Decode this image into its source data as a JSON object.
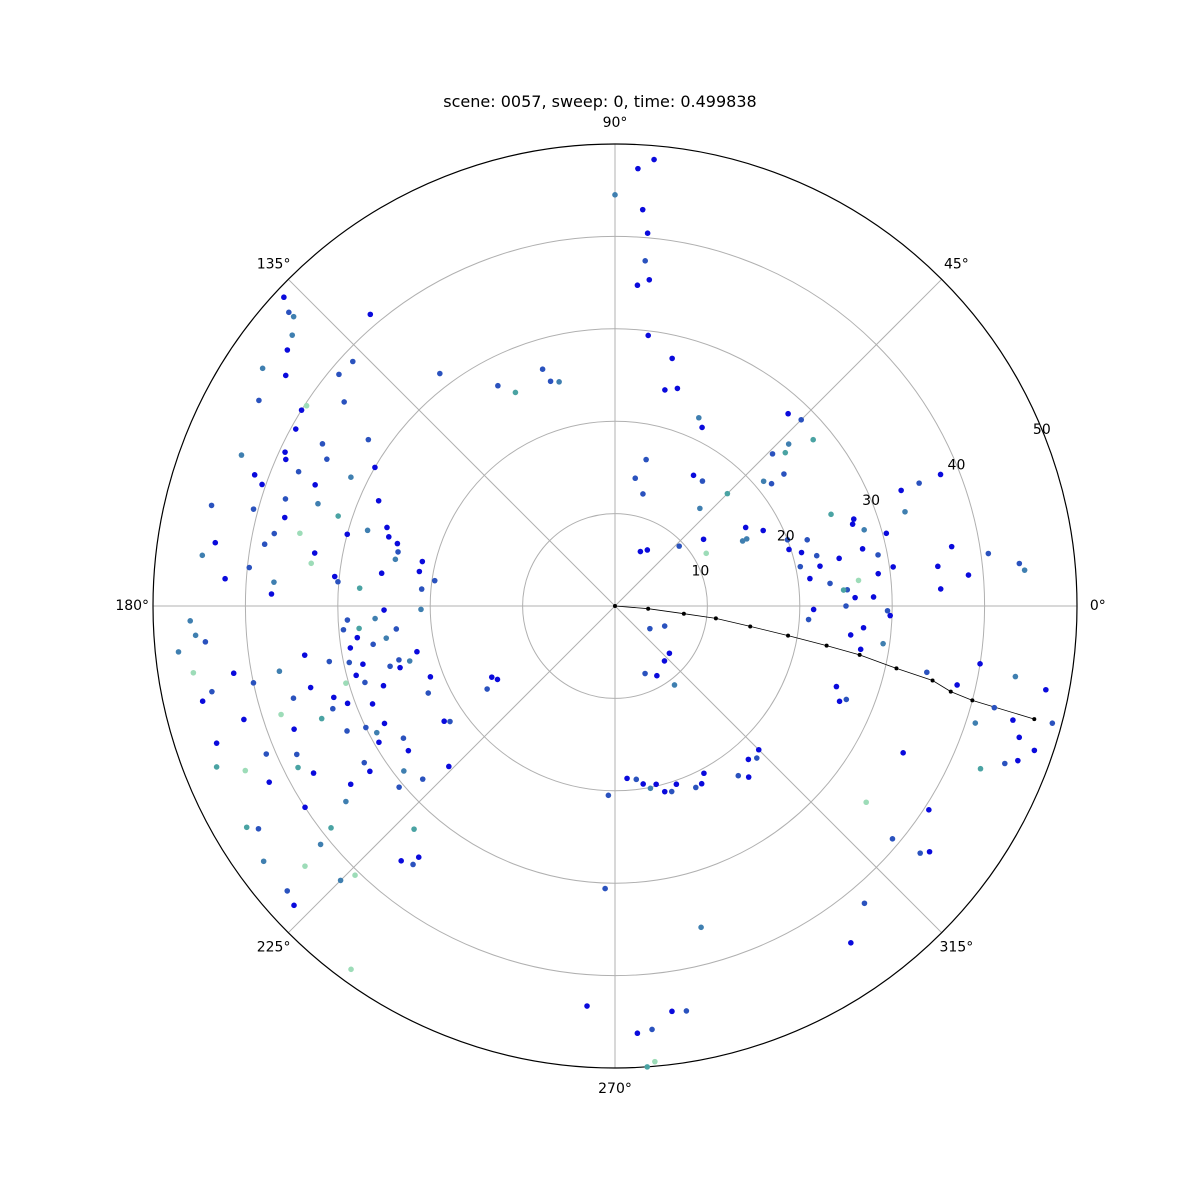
{
  "chart_data": {
    "type": "scatter",
    "coordinate_system": "polar",
    "title": "scene: 0057, sweep: 0, time: 0.499838",
    "angle_unit": "degrees",
    "theta_tick_labels": [
      "0°",
      "45°",
      "90°",
      "135°",
      "180°",
      "225°",
      "270°",
      "315°"
    ],
    "theta_ticks": [
      0,
      45,
      90,
      135,
      180,
      225,
      270,
      315
    ],
    "r_ticks": [
      10,
      20,
      30,
      40,
      50
    ],
    "r_tick_labels": [
      "10",
      "20",
      "30",
      "40",
      "50"
    ],
    "r_label_angle": 22.5,
    "rlim": [
      0,
      50
    ],
    "grid": true,
    "legend": "none",
    "colors": {
      "dark_blue": "#0a0adc",
      "blue": "#2a52be",
      "steel": "#3f7fb0",
      "teal": "#4aa3a3",
      "mint": "#9ddcb8",
      "trajectory": "#000000",
      "grid": "#b0b0b0",
      "frame": "#000000"
    },
    "points": [
      [
        7,
        28.7,
        0
      ],
      [
        8,
        30.4,
        0
      ],
      [
        7,
        35.2,
        0
      ],
      [
        5,
        38.4,
        0
      ],
      [
        3,
        35.3,
        0
      ],
      [
        2,
        28.0,
        0
      ],
      [
        6,
        23.4,
        1
      ],
      [
        4,
        25.2,
        1
      ],
      [
        0,
        25.0,
        1
      ],
      [
        -1,
        21.5,
        0
      ],
      [
        -4,
        21.0,
        1
      ],
      [
        10,
        37.0,
        0
      ],
      [
        8,
        40.8,
        1
      ],
      [
        12,
        24.8,
        0
      ],
      [
        14,
        22.5,
        1
      ],
      [
        13,
        27.5,
        0
      ],
      [
        15,
        30.4,
        0
      ],
      [
        20,
        27.5,
        0
      ],
      [
        18,
        33.0,
        2
      ],
      [
        22,
        35.5,
        1
      ],
      [
        22,
        38.0,
        0
      ],
      [
        5,
        44.5,
        2
      ],
      [
        6,
        44.0,
        1
      ],
      [
        -1,
        29.5,
        1
      ],
      [
        -2,
        29.8,
        0
      ],
      [
        -5,
        27.0,
        0
      ],
      [
        -7,
        25.7,
        0
      ],
      [
        -8,
        29.3,
        2
      ],
      [
        -15,
        42.5,
        1
      ],
      [
        -16,
        44.8,
        0
      ],
      [
        -21,
        46.7,
        0
      ],
      [
        -22,
        45.5,
        1
      ],
      [
        -13,
        38.0,
        0
      ],
      [
        -12,
        34.5,
        1
      ],
      [
        -18,
        41.0,
        2
      ],
      [
        -18,
        46.0,
        0
      ],
      [
        -19,
        48.0,
        0
      ],
      [
        -15,
        49.0,
        1
      ],
      [
        -11,
        47.5,
        0
      ],
      [
        -10,
        44.0,
        2
      ],
      [
        -9,
        40.0,
        0
      ],
      [
        -27,
        35.0,
        0
      ],
      [
        -22,
        27.0,
        1
      ],
      [
        -20,
        25.5,
        0
      ],
      [
        -23,
        26.4,
        0
      ],
      [
        -10,
        27.0,
        0
      ],
      [
        -24,
        43.3,
        3
      ],
      [
        -45,
        22.0,
        0
      ],
      [
        -47,
        22.5,
        1
      ],
      [
        -49,
        22.0,
        0
      ],
      [
        -52,
        23.5,
        0
      ],
      [
        -54,
        22.7,
        1
      ],
      [
        -38,
        34.5,
        4
      ],
      [
        -33,
        40.5,
        0
      ],
      [
        -38,
        43.2,
        0
      ],
      [
        -39,
        42.5,
        1
      ],
      [
        -40,
        39.2,
        1
      ],
      [
        -50,
        42.0,
        1
      ],
      [
        -55,
        44.5,
        0
      ],
      [
        -62,
        20.5,
        0
      ],
      [
        -64,
        21.4,
        0
      ],
      [
        -66,
        21.5,
        1
      ],
      [
        -71,
        20.4,
        0
      ],
      [
        -73,
        21.0,
        1
      ],
      [
        -75,
        20.8,
        0
      ],
      [
        -77,
        19.8,
        0
      ],
      [
        -79,
        20.1,
        2
      ],
      [
        -81,
        19.5,
        0
      ],
      [
        -83,
        18.9,
        1
      ],
      [
        -86,
        18.7,
        0
      ],
      [
        -92,
        20.5,
        1
      ],
      [
        -92,
        30.6,
        1
      ],
      [
        -94,
        43.4,
        0
      ],
      [
        -87,
        46.3,
        0
      ],
      [
        -85,
        46.0,
        1
      ],
      [
        -86,
        50.0,
        3
      ],
      [
        -85,
        49.5,
        4
      ],
      [
        -80,
        44.5,
        1
      ],
      [
        -82,
        44.3,
        0
      ],
      [
        -75,
        36.0,
        2
      ],
      [
        -66,
        8.0,
        1
      ],
      [
        -59,
        8.8,
        0
      ],
      [
        -48,
        8.0,
        0
      ],
      [
        -41,
        7.8,
        0
      ],
      [
        -53,
        10.7,
        2
      ],
      [
        -33,
        4.5,
        1
      ],
      [
        -22,
        5.8,
        1
      ],
      [
        90,
        44.5,
        2
      ],
      [
        85,
        48.5,
        0
      ],
      [
        87,
        47.4,
        0
      ],
      [
        86,
        43.0,
        0
      ],
      [
        85,
        37.5,
        1
      ],
      [
        85,
        40.5,
        0
      ],
      [
        86,
        34.8,
        0
      ],
      [
        84,
        35.5,
        0
      ],
      [
        83,
        29.5,
        0
      ],
      [
        77,
        27.5,
        0
      ],
      [
        74,
        24.5,
        0
      ],
      [
        77,
        24.0,
        0
      ],
      [
        66,
        22.3,
        2
      ],
      [
        64,
        21.5,
        0
      ],
      [
        78,
        16.2,
        1
      ],
      [
        81,
        14.0,
        1
      ],
      [
        76,
        12.5,
        1
      ],
      [
        60,
        7.0,
        0
      ],
      [
        65,
        6.5,
        0
      ],
      [
        55,
        16.5,
        1
      ],
      [
        59,
        16.5,
        0
      ],
      [
        45,
        28.5,
        1
      ],
      [
        48,
        28.0,
        0
      ],
      [
        42,
        24.8,
        3
      ],
      [
        40,
        21.0,
        2
      ],
      [
        38,
        21.5,
        1
      ],
      [
        45,
        17.2,
        3
      ],
      [
        49,
        14.0,
        2
      ],
      [
        43,
        9.5,
        1
      ],
      [
        37,
        12.0,
        0
      ],
      [
        30,
        11.4,
        4
      ],
      [
        27,
        15.5,
        2
      ],
      [
        27,
        18.0,
        0
      ],
      [
        21,
        20.0,
        1
      ],
      [
        18,
        19.8,
        0
      ],
      [
        19,
        22.0,
        1
      ],
      [
        16,
        21.0,
        0
      ],
      [
        12,
        20.5,
        1
      ],
      [
        19,
        27.2,
        0
      ],
      [
        17,
        28.2,
        2
      ],
      [
        11,
        29.0,
        1
      ],
      [
        4,
        24.8,
        3
      ],
      [
        11,
        22.6,
        0
      ],
      [
        8,
        21.3,
        0
      ],
      [
        23,
        25.4,
        3
      ],
      [
        6,
        26.5,
        4
      ],
      [
        2,
        26.0,
        0
      ],
      [
        40,
        28.0,
        3
      ],
      [
        44,
        23.7,
        1
      ],
      [
        43,
        25.7,
        2
      ],
      [
        22,
        33.4,
        0
      ],
      [
        104,
        25.0,
        2
      ],
      [
        106,
        25.3,
        1
      ],
      [
        107,
        26.8,
        1
      ],
      [
        127,
        31.5,
        1
      ],
      [
        118,
        27.0,
        1
      ],
      [
        115,
        25.5,
        3
      ],
      [
        38,
        23.2,
        1
      ],
      [
        31,
        16.5,
        0
      ],
      [
        27,
        16.0,
        2
      ],
      [
        176,
        42.3,
        0
      ],
      [
        173,
        45.0,
        2
      ],
      [
        166,
        45.0,
        1
      ],
      [
        172,
        25.5,
        0
      ],
      [
        165,
        30.0,
        0
      ],
      [
        161,
        40.4,
        0
      ],
      [
        162,
        37.5,
        1
      ],
      [
        157,
        37.2,
        1
      ],
      [
        164,
        24.5,
        0
      ],
      [
        168,
        24.3,
        2
      ],
      [
        172,
        19.7,
        1
      ],
      [
        170,
        21.5,
        0
      ],
      [
        167,
        21.4,
        0
      ],
      [
        175,
        21.0,
        1
      ],
      [
        170,
        33.0,
        0
      ],
      [
        165,
        40.5,
        1
      ],
      [
        162,
        31.5,
        3
      ],
      [
        158,
        35.0,
        0
      ],
      [
        150,
        44.5,
        1
      ],
      [
        145,
        43.5,
        0
      ],
      [
        138,
        47.5,
        1
      ],
      [
        142,
        45.0,
        0
      ],
      [
        140,
        45.6,
        2
      ],
      [
        137,
        49.0,
        0
      ],
      [
        138,
        46.8,
        2
      ],
      [
        140,
        39.0,
        1
      ],
      [
        137,
        38.8,
        1
      ],
      [
        130,
        41.2,
        0
      ],
      [
        153,
        35.0,
        1
      ],
      [
        151,
        39.5,
        0
      ],
      [
        160,
        41.5,
        0
      ],
      [
        158,
        43.6,
        2
      ],
      [
        155,
        39.4,
        0
      ],
      [
        148,
        40.0,
        0
      ],
      [
        143,
        36.7,
        1
      ],
      [
        146,
        46.0,
        2
      ],
      [
        147,
        39.8,
        4
      ],
      [
        150,
        30.0,
        0
      ],
      [
        146,
        32.2,
        1
      ],
      [
        156,
        39.0,
        0
      ],
      [
        151,
        36.2,
        1
      ],
      [
        154,
        31.8,
        2
      ],
      [
        156,
        28.0,
        0
      ],
      [
        161,
        34.0,
        2
      ],
      [
        163,
        25.6,
        0
      ],
      [
        166,
        24.2,
        1
      ],
      [
        161,
        26.1,
        0
      ],
      [
        168,
        37.7,
        1
      ],
      [
        165,
        37.0,
        0
      ],
      [
        167,
        35.0,
        4
      ],
      [
        170,
        38.5,
        1
      ],
      [
        163,
        28.0,
        2
      ],
      [
        171,
        43.8,
        0
      ],
      [
        174,
        39.8,
        1
      ],
      [
        172,
        33.2,
        4
      ],
      [
        176,
        37.0,
        2
      ],
      [
        178,
        37.2,
        0
      ],
      [
        176,
        27.7,
        3
      ],
      [
        175,
        30.1,
        1
      ],
      [
        174,
        30.5,
        0
      ],
      [
        184,
        45.5,
        2
      ],
      [
        186,
        47.5,
        2
      ],
      [
        190,
        41.9,
        0
      ],
      [
        192,
        40.0,
        1
      ],
      [
        197,
        42.0,
        0
      ],
      [
        196,
        36.2,
        1
      ],
      [
        198,
        38.0,
        4
      ],
      [
        195,
        34.1,
        0
      ],
      [
        191,
        31.5,
        1
      ],
      [
        188,
        25.0,
        2
      ],
      [
        187,
        28.1,
        0
      ],
      [
        189,
        26.5,
        1
      ],
      [
        189,
        29.0,
        0
      ],
      [
        192,
        29.4,
        1
      ],
      [
        193,
        28.0,
        0
      ],
      [
        195,
        25.2,
        1
      ],
      [
        196,
        30.3,
        4
      ],
      [
        198,
        32.0,
        0
      ],
      [
        200,
        32.5,
        1
      ],
      [
        201,
        34.0,
        3
      ],
      [
        202,
        28.3,
        0
      ],
      [
        206,
        30.0,
        1
      ],
      [
        208,
        29.2,
        2
      ],
      [
        210,
        29.5,
        0
      ],
      [
        212,
        32.0,
        1
      ],
      [
        214,
        34.5,
        0
      ],
      [
        216,
        36.0,
        2
      ],
      [
        218,
        39.0,
        3
      ],
      [
        213,
        40.0,
        0
      ],
      [
        205,
        38.0,
        1
      ],
      [
        207,
        42.0,
        0
      ],
      [
        212,
        45.5,
        1
      ],
      [
        216,
        47.0,
        2
      ],
      [
        221,
        47.0,
        1
      ],
      [
        223,
        47.5,
        0
      ],
      [
        220,
        43.8,
        4
      ],
      [
        211,
        46.5,
        3
      ],
      [
        204,
        43.8,
        4
      ],
      [
        203,
        41.0,
        1
      ],
      [
        199,
        45.6,
        0
      ],
      [
        193,
        45.8,
        0
      ],
      [
        192,
        44.6,
        1
      ],
      [
        189,
        34.0,
        0
      ],
      [
        191,
        37.0,
        2
      ],
      [
        201,
        37.2,
        0
      ],
      [
        202,
        46.5,
        3
      ],
      [
        209,
        37.3,
        0
      ],
      [
        214,
        32.0,
        0
      ],
      [
        205,
        32.0,
        1
      ],
      [
        200,
        30.8,
        0
      ],
      [
        207,
        38.5,
        3
      ],
      [
        219,
        41.0,
        2
      ],
      [
        226,
        40.5,
        4
      ],
      [
        215,
        27.3,
        0
      ],
      [
        218,
        29.0,
        2
      ],
      [
        220,
        30.5,
        1
      ],
      [
        212,
        27.0,
        1
      ],
      [
        207,
        28.0,
        0
      ],
      [
        199,
        26.5,
        0
      ],
      [
        197,
        28.3,
        1
      ],
      [
        195,
        29.0,
        0
      ],
      [
        183,
        26.0,
        2
      ],
      [
        186,
        23.8,
        1
      ],
      [
        193,
        22.0,
        0
      ],
      [
        195,
        23.0,
        2
      ],
      [
        194,
        24.1,
        1
      ],
      [
        196,
        24.2,
        0
      ],
      [
        201,
        21.4,
        0
      ],
      [
        205,
        22.3,
        1
      ],
      [
        215,
        21.8,
        1
      ],
      [
        214,
        22.3,
        0
      ],
      [
        183,
        29.0,
        1
      ],
      [
        181,
        21.0,
        2
      ],
      [
        185,
        27.8,
        3
      ],
      [
        185,
        29.5,
        1
      ],
      [
        181,
        25.0,
        0
      ],
      [
        210,
        15.4,
        0
      ],
      [
        213,
        16.5,
        1
      ],
      [
        212,
        15.0,
        0
      ],
      [
        225,
        42.0,
        2
      ],
      [
        234,
        48.6,
        4
      ],
      [
        230,
        36.0,
        0
      ],
      [
        232,
        35.5,
        1
      ],
      [
        228,
        32.5,
        3
      ],
      [
        232,
        34.5,
        0
      ],
      [
        222,
        28.0,
        1
      ],
      [
        224,
        25.0,
        0
      ],
      [
        189,
        46.2,
        4
      ],
      [
        185,
        44.5,
        1
      ],
      [
        182,
        46.0,
        2
      ]
    ],
    "trajectory": [
      [
        0,
        0
      ],
      [
        -4.7,
        3.6
      ],
      [
        -6.4,
        7.5
      ],
      [
        -7.0,
        11.0
      ],
      [
        -8.6,
        14.8
      ],
      [
        -9.7,
        19.0
      ],
      [
        -10.6,
        23.3
      ],
      [
        -11.3,
        27.0
      ],
      [
        -12.5,
        31.2
      ],
      [
        -13.2,
        35.3
      ],
      [
        -14.3,
        37.5
      ],
      [
        -14.8,
        40.0
      ],
      [
        -15.1,
        47.0
      ]
    ]
  }
}
